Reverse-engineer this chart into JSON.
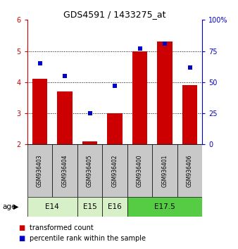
{
  "title": "GDS4591 / 1433275_at",
  "samples": [
    "GSM936403",
    "GSM936404",
    "GSM936405",
    "GSM936402",
    "GSM936400",
    "GSM936401",
    "GSM936406"
  ],
  "transformed_count": [
    4.1,
    3.7,
    2.1,
    3.0,
    5.0,
    5.3,
    3.9
  ],
  "percentile_rank": [
    65,
    55,
    25,
    47,
    77,
    81,
    62
  ],
  "ylim_left": [
    2,
    6
  ],
  "ylim_right": [
    0,
    100
  ],
  "yticks_left": [
    2,
    3,
    4,
    5,
    6
  ],
  "yticks_right": [
    0,
    25,
    50,
    75,
    100
  ],
  "yticklabels_right": [
    "0",
    "25",
    "50",
    "75",
    "100%"
  ],
  "bar_color": "#cc0000",
  "scatter_color": "#0000cc",
  "age_groups": [
    {
      "label": "E14",
      "start": 0,
      "end": 2,
      "color": "#d8f0c8"
    },
    {
      "label": "E15",
      "start": 2,
      "end": 3,
      "color": "#d8f0c8"
    },
    {
      "label": "E16",
      "start": 3,
      "end": 4,
      "color": "#d8f0c8"
    },
    {
      "label": "E17.5",
      "start": 4,
      "end": 7,
      "color": "#55cc44"
    }
  ],
  "age_label": "age",
  "legend_bar_label": "transformed count",
  "legend_scatter_label": "percentile rank within the sample",
  "sample_box_color": "#c8c8c8",
  "dotted_line_color": "#000000",
  "grid_ticks": [
    3,
    4,
    5
  ]
}
